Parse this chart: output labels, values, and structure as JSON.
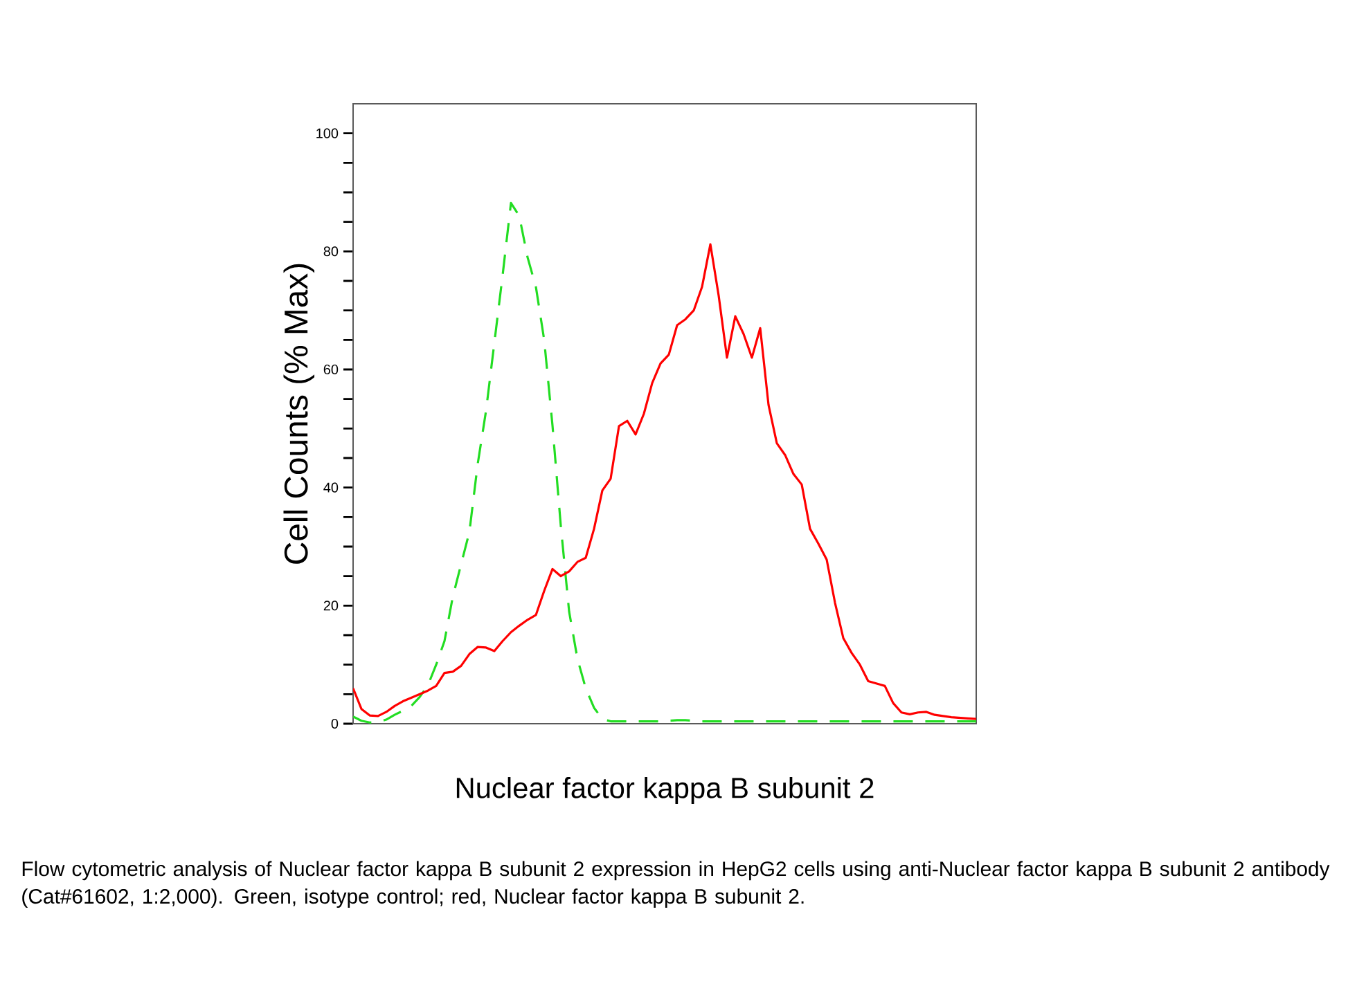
{
  "chart_data": {
    "type": "line",
    "ylabel": "Cell Counts (% Max)",
    "xlabel": "Nuclear factor kappa B subunit 2",
    "annotations": [
      "Flow cytometric analysis of Nuclear factor kappa B subunit 2 expression in HepG2 cells using anti-Nuclear factor kappa B subunit 2 antibody (Cat#61602, 1:2,000). Green, isotype control; red, Nuclear factor kappa B subunit 2."
    ],
    "categories": [
      null,
      null,
      null,
      null,
      null,
      null,
      null,
      null,
      null,
      null,
      null,
      null,
      null,
      null,
      null,
      null,
      null,
      null,
      null,
      null,
      null,
      null,
      null,
      null,
      null,
      null,
      null,
      null,
      null,
      null,
      null,
      null,
      null,
      null,
      null,
      null,
      null,
      null,
      null,
      null,
      null,
      null,
      null,
      null,
      null,
      null,
      null,
      null,
      null,
      null,
      null,
      null,
      null,
      null,
      null,
      null,
      null,
      null,
      null,
      null,
      null,
      null,
      null,
      null,
      null,
      null,
      null,
      null,
      null,
      null,
      null,
      null,
      null,
      null,
      null,
      null
    ],
    "series": [
      {
        "color": "#22dd22",
        "line_style": "dashed",
        "values": [
          1.2,
          0.5,
          0.2,
          0.3,
          0.7,
          1.5,
          2.2,
          3.0,
          4.5,
          6.5,
          10.0,
          14.0,
          21.5,
          27.0,
          32.5,
          44.0,
          53.0,
          64.5,
          76.0,
          88.2,
          86.0,
          79.0,
          74.0,
          65.0,
          50.5,
          33.5,
          19.0,
          11.0,
          6.0,
          2.7,
          0.8,
          0.4,
          0.4,
          0.4,
          0.4,
          0.4,
          0.4,
          0.4,
          0.5,
          0.6,
          0.6,
          0.5,
          0.4,
          0.4,
          0.4,
          0.4,
          0.4,
          0.4,
          0.4,
          0.4,
          0.4,
          0.4,
          0.4,
          0.4,
          0.4,
          0.4,
          0.4,
          0.4,
          0.4,
          0.4,
          0.4,
          0.4,
          0.4,
          0.4,
          0.4,
          0.4,
          0.4,
          0.4,
          0.4,
          0.4,
          0.4,
          0.4,
          0.4,
          0.4,
          0.4,
          0.4
        ]
      },
      {
        "color": "#ff0000",
        "line_style": "solid",
        "values": [
          6.0,
          2.5,
          1.4,
          1.3,
          2.0,
          3.0,
          3.8,
          4.4,
          5.0,
          5.6,
          6.4,
          8.6,
          8.8,
          9.8,
          11.8,
          13.0,
          12.9,
          12.3,
          14.0,
          15.5,
          16.6,
          17.6,
          18.4,
          22.5,
          26.2,
          25.0,
          25.8,
          27.4,
          28.1,
          33.0,
          39.5,
          41.5,
          50.4,
          51.3,
          49.0,
          52.5,
          57.7,
          61.0,
          62.5,
          67.5,
          68.5,
          70.0,
          74.0,
          81.2,
          72.5,
          62.0,
          69.0,
          66.0,
          62.0,
          67.0,
          54.0,
          47.5,
          45.5,
          42.3,
          40.5,
          33.0,
          30.5,
          27.8,
          20.5,
          14.5,
          12.0,
          10.0,
          7.2,
          6.8,
          6.4,
          3.5,
          1.9,
          1.6,
          1.9,
          2.0,
          1.5,
          1.3,
          1.1,
          1.0,
          0.9,
          0.8
        ]
      }
    ],
    "ylim": [
      0,
      105
    ],
    "yticks": [
      0,
      {
        "value": 5,
        "label": null
      },
      {
        "value": 10,
        "label": null
      },
      {
        "value": 15,
        "label": null
      },
      20,
      {
        "value": 25,
        "label": null
      },
      {
        "value": 30,
        "label": null
      },
      {
        "value": 35,
        "label": null
      },
      40,
      {
        "value": 45,
        "label": null
      },
      {
        "value": 50,
        "label": null
      },
      {
        "value": 55,
        "label": null
      },
      60,
      {
        "value": 65,
        "label": null
      },
      {
        "value": 70,
        "label": null
      },
      {
        "value": 75,
        "label": null
      },
      80,
      {
        "value": 85,
        "label": null
      },
      {
        "value": 90,
        "label": null
      },
      {
        "value": 95,
        "label": null
      },
      100
    ],
    "tick_labels": "y"
  }
}
